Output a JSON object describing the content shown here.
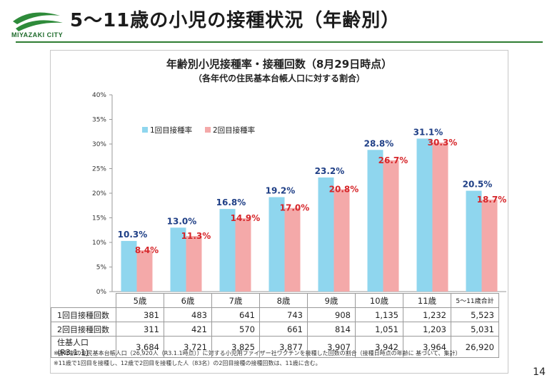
{
  "header": {
    "title": "5～11歳の小児の接種状況（年齢別）",
    "logo_text": "MIYAZAKI CITY"
  },
  "page_number": "14",
  "colors": {
    "series1": "#8fd6ee",
    "series2": "#f4a9a9",
    "label1": "#1f3f86",
    "label2": "#d6262a",
    "rule": "#2e7d32"
  },
  "chart_data": {
    "type": "bar",
    "title": "年齢別小児接種率・接種回数（8月29日時点）",
    "subtitle": "（各年代の住民基本台帳人口に対する割合）",
    "categories": [
      "5歳",
      "6歳",
      "7歳",
      "8歳",
      "9歳",
      "10歳",
      "11歳",
      "5～11歳合計"
    ],
    "series": [
      {
        "name": "1回目接種率",
        "values": [
          10.3,
          13.0,
          16.8,
          19.2,
          23.2,
          28.8,
          31.1,
          20.5
        ],
        "labels": [
          "10.3%",
          "13.0%",
          "16.8%",
          "19.2%",
          "23.2%",
          "28.8%",
          "31.1%",
          "20.5%"
        ]
      },
      {
        "name": "2回目接種率",
        "values": [
          8.4,
          11.3,
          14.9,
          17.0,
          20.8,
          26.7,
          30.3,
          18.7
        ],
        "labels": [
          "8.4%",
          "11.3%",
          "14.9%",
          "17.0%",
          "20.8%",
          "26.7%",
          "30.3%",
          "18.7%"
        ]
      }
    ],
    "ylim": [
      0,
      40
    ],
    "yticks": [
      "0%",
      "5%",
      "10%",
      "15%",
      "20%",
      "25%",
      "30%",
      "35%",
      "40%"
    ],
    "legend_position": "top-left",
    "grid": false
  },
  "table": {
    "rows": [
      {
        "label": "1回目接種回数",
        "values": [
          "381",
          "483",
          "641",
          "743",
          "908",
          "1,135",
          "1,232",
          "5,523"
        ]
      },
      {
        "label": "2回目接種回数",
        "values": [
          "311",
          "421",
          "570",
          "661",
          "814",
          "1,051",
          "1,203",
          "5,031"
        ]
      },
      {
        "label": "住基人口(R3.1.1)",
        "values": [
          "3,684",
          "3,721",
          "3,825",
          "3,877",
          "3,907",
          "3,942",
          "3,964",
          "26,920"
        ]
      }
    ]
  },
  "notes": [
    "※各年齢の住民基本台帳人口（26,920人（R3.1.1時点））に対する小児用ファイザー社ワクチンを接種した回数の割合（接種日時点の年齢に 基づいて、集計）",
    "※11歳で1回目を接種し、12歳で2回目を接種した人（83名）の2回目接種の接種回数は、11歳に含む。"
  ]
}
